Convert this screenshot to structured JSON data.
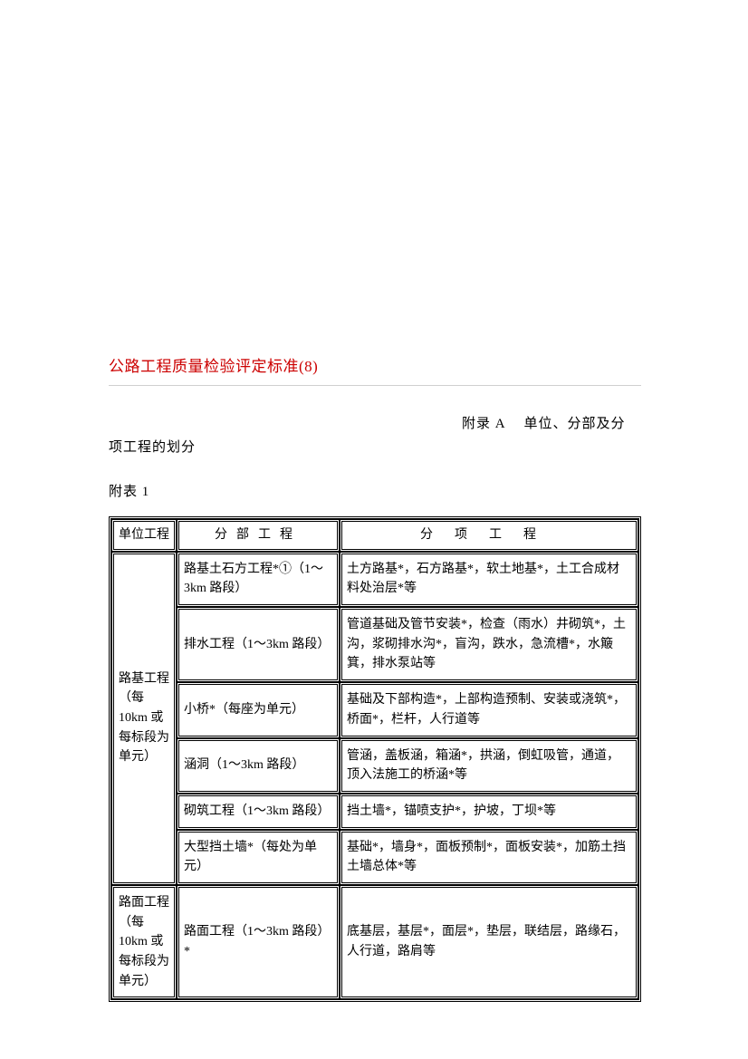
{
  "title": "公路工程质量检验评定标准(8)",
  "appendix_label_right": "附录 A　 单位、分部及分",
  "appendix_label_left": "项工程的划分",
  "table_label": "附表 1",
  "table": {
    "headers": {
      "unit": "单位工程",
      "sub": "分部工程",
      "item": "分项工程"
    },
    "groups": [
      {
        "unit": "路基工程（每 10km 或每标段为单元）",
        "rows": [
          {
            "sub": "路基土石方工程*①（1～3km 路段）",
            "item": "土方路基*，石方路基*，软土地基*，土工合成材料处治层*等"
          },
          {
            "sub": "排水工程（1～3km 路段）",
            "item": "管道基础及管节安装*，检查（雨水）井砌筑*，土沟，浆砌排水沟*，盲沟，跌水，急流槽*，水簸箕，排水泵站等"
          },
          {
            "sub": "小桥*（每座为单元）",
            "item": "基础及下部构造*，上部构造预制、安装或浇筑*，桥面*，栏杆，人行道等"
          },
          {
            "sub": "涵洞（1～3km 路段）",
            "item": "管涵，盖板涵，箱涵*，拱涵，倒虹吸管，通道，顶入法施工的桥涵*等"
          },
          {
            "sub": "砌筑工程（1～3km 路段）",
            "item": "挡土墙*，锚喷支护*，护坡，丁坝*等"
          },
          {
            "sub": "大型挡土墙*（每处为单元）",
            "item": "基础*，墙身*，面板预制*，面板安装*，加筋土挡土墙总体*等"
          }
        ]
      },
      {
        "unit": "路面工程（每 10km 或每标段为单元）",
        "rows": [
          {
            "sub": "路面工程（1～3km 路段）*",
            "item": "底基层，基层*，面层*，垫层，联结层，路缘石，人行道，路肩等"
          }
        ]
      }
    ]
  }
}
